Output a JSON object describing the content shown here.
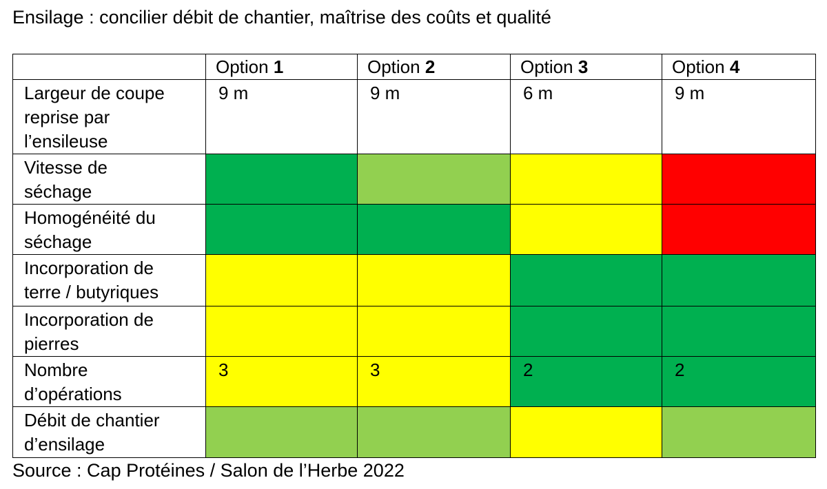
{
  "header": {
    "title": "Ensilage : concilier débit de chantier, maîtrise des coûts et qualité"
  },
  "table": {
    "columns": [
      {
        "label": "Option",
        "number": "1"
      },
      {
        "label": "Option",
        "number": "2"
      },
      {
        "label": "Option",
        "number": "3"
      },
      {
        "label": "Option",
        "number": "4"
      }
    ],
    "rows": [
      {
        "label": [
          "Largeur de coupe",
          "reprise par",
          "l’ensileuse"
        ],
        "cells": [
          {
            "text": "9 m",
            "color": "#ffffff"
          },
          {
            "text": "9 m",
            "color": "#ffffff"
          },
          {
            "text": "6 m",
            "color": "#ffffff"
          },
          {
            "text": "9 m",
            "color": "#ffffff"
          }
        ]
      },
      {
        "label": [
          "Vitesse de",
          "séchage"
        ],
        "cells": [
          {
            "text": null,
            "color": "#00b050"
          },
          {
            "text": null,
            "color": "#92d050"
          },
          {
            "text": null,
            "color": "#ffff00"
          },
          {
            "text": null,
            "color": "#ff0000"
          }
        ]
      },
      {
        "label": [
          "Homogénéité du",
          "séchage"
        ],
        "cells": [
          {
            "text": null,
            "color": "#00b050"
          },
          {
            "text": null,
            "color": "#00b050"
          },
          {
            "text": null,
            "color": "#ffff00"
          },
          {
            "text": null,
            "color": "#ff0000"
          }
        ]
      },
      {
        "label": [
          "Incorporation de",
          "terre / butyriques"
        ],
        "cells": [
          {
            "text": null,
            "color": "#ffff00"
          },
          {
            "text": null,
            "color": "#ffff00"
          },
          {
            "text": null,
            "color": "#00b050"
          },
          {
            "text": null,
            "color": "#00b050"
          }
        ]
      },
      {
        "label": [
          "Incorporation de",
          "pierres"
        ],
        "cells": [
          {
            "text": null,
            "color": "#ffff00"
          },
          {
            "text": null,
            "color": "#ffff00"
          },
          {
            "text": null,
            "color": "#00b050"
          },
          {
            "text": null,
            "color": "#00b050"
          }
        ]
      },
      {
        "label": [
          "Nombre",
          "d’opérations"
        ],
        "cells": [
          {
            "text": 3,
            "color": "#ffff00"
          },
          {
            "text": 3,
            "color": "#ffff00"
          },
          {
            "text": 2,
            "color": "#00b050"
          },
          {
            "text": 2,
            "color": "#00b050"
          }
        ]
      },
      {
        "label": [
          "Débit de chantier",
          "d’ensilage"
        ],
        "cells": [
          {
            "text": null,
            "color": "#92d050"
          },
          {
            "text": null,
            "color": "#92d050"
          },
          {
            "text": null,
            "color": "#ffff00"
          },
          {
            "text": null,
            "color": "#92d050"
          }
        ]
      }
    ]
  },
  "footer": {
    "source": "Source : Cap Protéines / Salon de l’Herbe 2022"
  }
}
